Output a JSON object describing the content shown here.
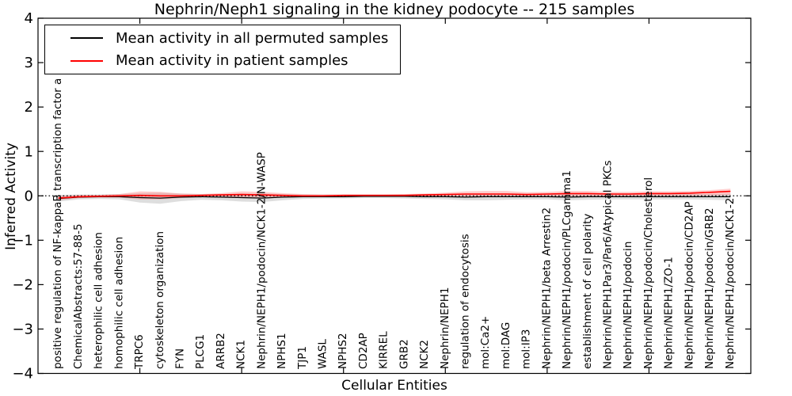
{
  "legend": {
    "entries": [
      {
        "label": "Mean activity in all permuted samples",
        "color": "#000000"
      },
      {
        "label": "Mean activity in patient samples",
        "color": "#ff0000"
      }
    ]
  },
  "chart_data": {
    "type": "line",
    "title": "Nephrin/Neph1 signaling in the kidney podocyte -- 215 samples",
    "xlabel": "Cellular Entities",
    "ylabel": "Inferred Activity",
    "ylim": [
      -4,
      4
    ],
    "ytick_values": [
      4,
      3,
      2,
      1,
      0,
      -1,
      -2,
      -3,
      -4
    ],
    "ytick_labels": [
      "4",
      "3",
      "2",
      "1",
      "0",
      "−1",
      "−2",
      "−3",
      "−4"
    ],
    "xtick_values": [
      5,
      10,
      15,
      20,
      25,
      30
    ],
    "grid": false,
    "legend_position": "upper left",
    "zero_line": {
      "style": "dotted",
      "color": "#000000",
      "y": 0
    },
    "categories": [
      "positive regulation of NF-kappaB transcription factor a",
      "ChemicalAbstracts:57-88-5",
      "heterophilic cell adhesion",
      "homophilic cell adhesion",
      "TRPC6",
      "cytoskeleton organization",
      "FYN",
      "PLCG1",
      "ARRB2",
      "NCK1",
      "Nephrin/NEPH1/podocin/NCK1-2/N-WASP",
      "NPHS1",
      "TJP1",
      "WASL",
      "NPHS2",
      "CD2AP",
      "KIRREL",
      "GRB2",
      "NCK2",
      "Nephrin/NEPH1",
      "regulation of endocytosis",
      "mol:Ca2+",
      "mol:DAG",
      "mol:IP3",
      "Nephrin/NEPH1/beta Arrestin2",
      "Nephrin/NEPH1/podocin/PLCgamma1",
      "establishment of cell polarity",
      "Nephrin/NEPH1Par3/Par6/Atypical PKCs",
      "Nephrin/NEPH1/podocin",
      "Nephrin/NEPH1/podocin/Cholesterol",
      "Nephrin/NEPH1/ZO-1",
      "Nephrin/NEPH1/podocin/CD2AP",
      "Nephrin/NEPH1/podocin/GRB2",
      "Nephrin/NEPH1/podocin/NCK1-2"
    ],
    "series": [
      {
        "name": "Mean activity in all permuted samples",
        "color": "#000000",
        "band_color": "#c8c8c8",
        "band_opacity": 0.6,
        "values": [
          -0.06,
          -0.03,
          -0.02,
          -0.02,
          -0.04,
          -0.05,
          -0.03,
          -0.02,
          -0.03,
          -0.04,
          -0.05,
          -0.03,
          -0.02,
          -0.02,
          -0.02,
          -0.01,
          -0.01,
          -0.01,
          -0.02,
          -0.02,
          -0.03,
          -0.02,
          -0.02,
          -0.02,
          -0.02,
          -0.03,
          -0.02,
          -0.02,
          -0.02,
          -0.02,
          -0.02,
          -0.02,
          -0.02,
          -0.02
        ],
        "band_lo": [
          -0.13,
          -0.08,
          -0.07,
          -0.08,
          -0.15,
          -0.18,
          -0.12,
          -0.09,
          -0.1,
          -0.13,
          -0.14,
          -0.1,
          -0.07,
          -0.06,
          -0.06,
          -0.05,
          -0.05,
          -0.06,
          -0.07,
          -0.08,
          -0.1,
          -0.1,
          -0.09,
          -0.08,
          -0.08,
          -0.1,
          -0.09,
          -0.08,
          -0.08,
          -0.08,
          -0.08,
          -0.08,
          -0.09,
          -0.1
        ],
        "band_hi": [
          0.02,
          0.03,
          0.03,
          0.04,
          0.06,
          0.07,
          0.05,
          0.04,
          0.04,
          0.05,
          0.05,
          0.04,
          0.03,
          0.03,
          0.03,
          0.03,
          0.03,
          0.03,
          0.04,
          0.04,
          0.05,
          0.05,
          0.05,
          0.04,
          0.04,
          0.05,
          0.05,
          0.04,
          0.04,
          0.04,
          0.04,
          0.04,
          0.04,
          0.05
        ]
      },
      {
        "name": "Mean activity in patient samples",
        "color": "#ff0000",
        "band_color": "#ff7070",
        "band_opacity": 0.35,
        "values": [
          -0.05,
          -0.02,
          -0.01,
          0.0,
          0.01,
          0.0,
          0.0,
          0.01,
          0.02,
          0.03,
          0.02,
          0.01,
          0.0,
          0.0,
          0.01,
          0.01,
          0.01,
          0.01,
          0.02,
          0.03,
          0.04,
          0.04,
          0.04,
          0.03,
          0.04,
          0.05,
          0.05,
          0.04,
          0.04,
          0.05,
          0.05,
          0.06,
          0.08,
          0.1
        ],
        "band_lo": [
          -0.1,
          -0.05,
          -0.04,
          -0.04,
          -0.08,
          -0.08,
          -0.05,
          -0.03,
          -0.04,
          -0.05,
          -0.06,
          -0.04,
          -0.03,
          -0.02,
          -0.02,
          -0.02,
          -0.02,
          -0.02,
          -0.02,
          -0.02,
          -0.02,
          -0.02,
          -0.02,
          -0.02,
          -0.01,
          -0.01,
          -0.01,
          -0.01,
          -0.01,
          0.0,
          0.0,
          0.0,
          0.01,
          0.02
        ],
        "band_hi": [
          0.0,
          0.02,
          0.02,
          0.04,
          0.1,
          0.09,
          0.05,
          0.04,
          0.06,
          0.1,
          0.09,
          0.06,
          0.04,
          0.03,
          0.03,
          0.03,
          0.03,
          0.04,
          0.05,
          0.07,
          0.1,
          0.11,
          0.11,
          0.08,
          0.09,
          0.11,
          0.11,
          0.09,
          0.09,
          0.1,
          0.1,
          0.11,
          0.13,
          0.16
        ]
      }
    ]
  }
}
